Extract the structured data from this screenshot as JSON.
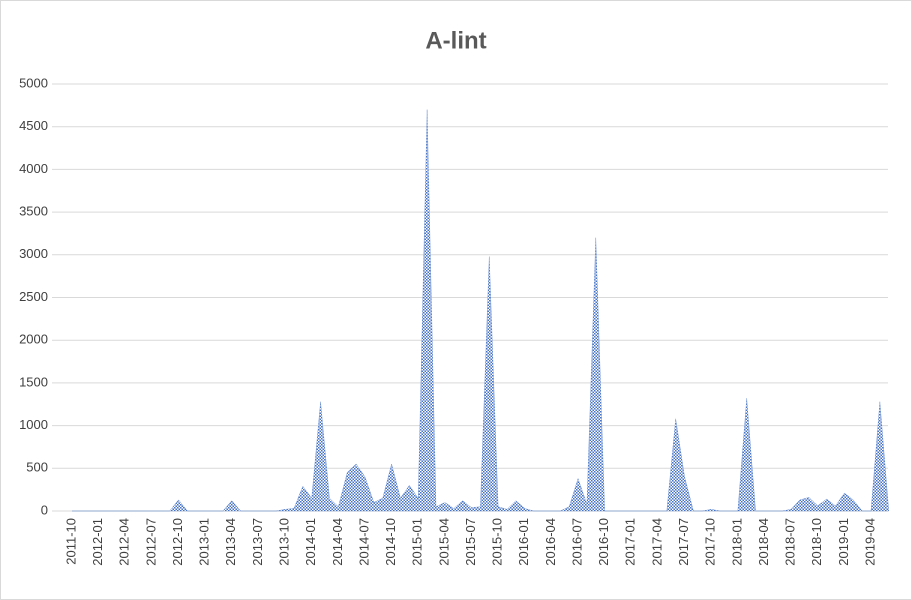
{
  "chart_data": {
    "type": "area",
    "title": "A-lint",
    "categories": [
      "2011-10",
      null,
      null,
      "2012-01",
      null,
      null,
      "2012-04",
      null,
      null,
      "2012-07",
      null,
      null,
      "2012-10",
      null,
      null,
      "2013-01",
      null,
      null,
      "2013-04",
      null,
      null,
      "2013-07",
      null,
      null,
      "2013-10",
      null,
      null,
      "2014-01",
      null,
      null,
      "2014-04",
      null,
      null,
      "2014-07",
      null,
      null,
      "2014-10",
      null,
      null,
      "2015-01",
      null,
      null,
      "2015-04",
      null,
      null,
      "2015-07",
      null,
      null,
      "2015-10",
      null,
      null,
      "2016-01",
      null,
      null,
      "2016-04",
      null,
      null,
      "2016-07",
      null,
      null,
      "2016-10",
      null,
      null,
      "2017-01",
      null,
      null,
      "2017-04",
      null,
      null,
      "2017-07",
      null,
      null,
      "2017-10",
      null,
      null,
      "2018-01",
      null,
      null,
      "2018-04",
      null,
      null,
      "2018-07",
      null,
      null,
      "2018-10",
      null,
      null,
      "2019-01",
      null,
      null,
      "2019-04",
      null,
      null
    ],
    "values": [
      0,
      0,
      0,
      0,
      0,
      0,
      0,
      0,
      0,
      0,
      0,
      0,
      130,
      0,
      0,
      0,
      0,
      0,
      120,
      0,
      0,
      0,
      0,
      0,
      20,
      30,
      290,
      150,
      1280,
      150,
      50,
      450,
      550,
      400,
      100,
      150,
      550,
      150,
      300,
      150,
      4700,
      50,
      100,
      30,
      120,
      40,
      50,
      2980,
      50,
      20,
      120,
      30,
      0,
      0,
      0,
      0,
      50,
      380,
      80,
      3200,
      0,
      0,
      0,
      0,
      0,
      0,
      0,
      0,
      1080,
      400,
      0,
      0,
      20,
      0,
      0,
      0,
      1320,
      0,
      0,
      0,
      0,
      20,
      130,
      160,
      60,
      140,
      60,
      210,
      130,
      0,
      0,
      1280,
      0
    ],
    "color": "#4472c4",
    "ylim": [
      0,
      5000
    ],
    "yticks": [
      0,
      500,
      1000,
      1500,
      2000,
      2500,
      3000,
      3500,
      4000,
      4500,
      5000
    ],
    "grid": true
  }
}
